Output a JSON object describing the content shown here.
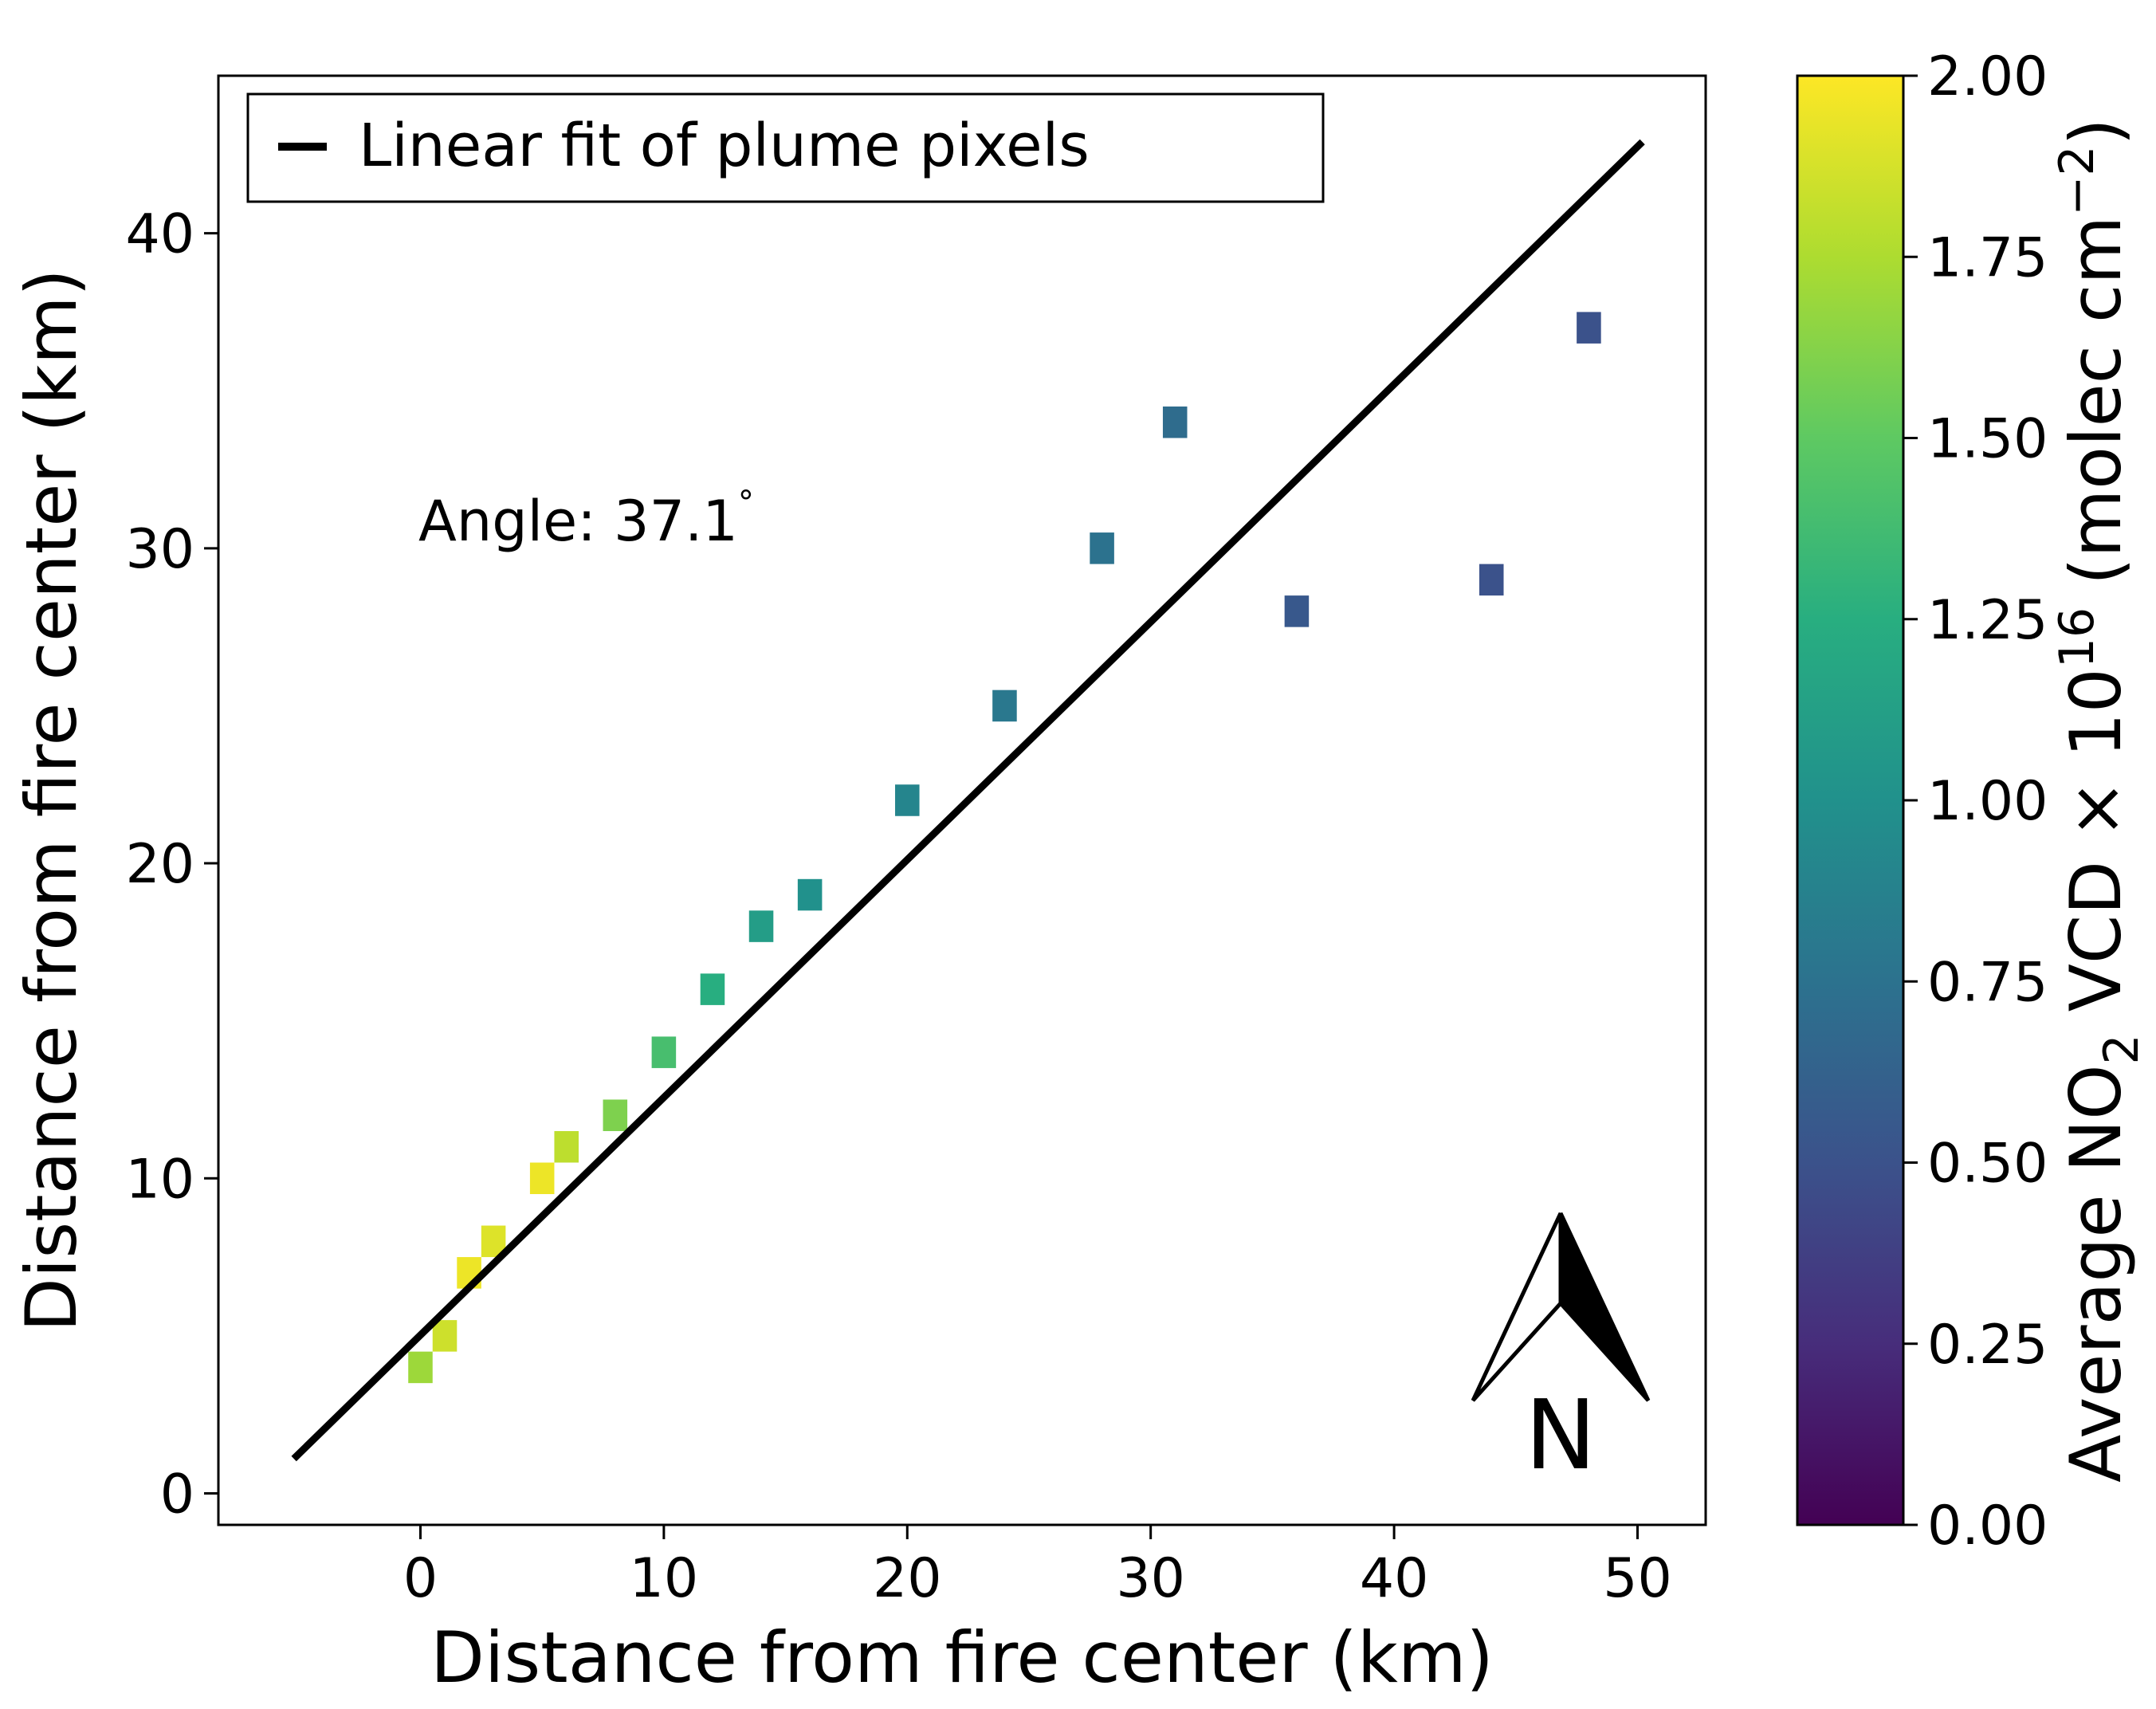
{
  "chart_data": {
    "type": "heatmap",
    "xlabel": "Distance from fire center (km)",
    "ylabel": "Distance from fire center (km)",
    "xlim": [
      -8.3,
      52.8
    ],
    "ylim": [
      -1.0,
      45.0
    ],
    "x_ticks": [
      0,
      10,
      20,
      30,
      40,
      50
    ],
    "y_ticks": [
      0,
      10,
      20,
      30,
      40
    ],
    "grid": false,
    "legend": {
      "placement": "top-left",
      "entries": [
        {
          "name": "Linear fit of plume pixels",
          "color": "#000000"
        }
      ]
    },
    "annotation": {
      "text": "Angle: 37.1",
      "degree_symbol": "°"
    },
    "north_arrow": {
      "label": "N"
    },
    "fit_line": {
      "x": [
        -5.2,
        50.2
      ],
      "y": [
        1.1,
        42.9
      ]
    },
    "colorbar": {
      "colormap": "viridis",
      "range": [
        0.0,
        2.0
      ],
      "ticks": [
        "0.00",
        "0.25",
        "0.50",
        "0.75",
        "1.00",
        "1.25",
        "1.50",
        "1.75",
        "2.00"
      ],
      "label_prefix": "Average NO",
      "label_sub": "2",
      "label_mid": " VCD × 10",
      "label_sup1": "16",
      "label_unit": " (molec cm",
      "label_sup2": "−2",
      "label_close": ")"
    },
    "plume": {
      "description": "gridded NO2 column values by position",
      "cells": [
        {
          "x": 0,
          "y": 4,
          "value": 1.7
        },
        {
          "x": 1,
          "y": 5,
          "value": 1.85
        },
        {
          "x": 2,
          "y": 7,
          "value": 1.95
        },
        {
          "x": 3,
          "y": 8,
          "value": 1.9
        },
        {
          "x": 5,
          "y": 10,
          "value": 1.95
        },
        {
          "x": 6,
          "y": 11,
          "value": 1.8
        },
        {
          "x": 8,
          "y": 12,
          "value": 1.6
        },
        {
          "x": 10,
          "y": 14,
          "value": 1.4
        },
        {
          "x": 12,
          "y": 16,
          "value": 1.25
        },
        {
          "x": 14,
          "y": 18,
          "value": 1.1
        },
        {
          "x": 16,
          "y": 19,
          "value": 1.0
        },
        {
          "x": 20,
          "y": 22,
          "value": 0.9
        },
        {
          "x": 24,
          "y": 25,
          "value": 0.8
        },
        {
          "x": 28,
          "y": 30,
          "value": 0.75
        },
        {
          "x": 31,
          "y": 34,
          "value": 0.7
        },
        {
          "x": 36,
          "y": 28,
          "value": 0.55
        },
        {
          "x": 44,
          "y": 29,
          "value": 0.5
        },
        {
          "x": 48,
          "y": 37,
          "value": 0.5
        }
      ]
    }
  }
}
